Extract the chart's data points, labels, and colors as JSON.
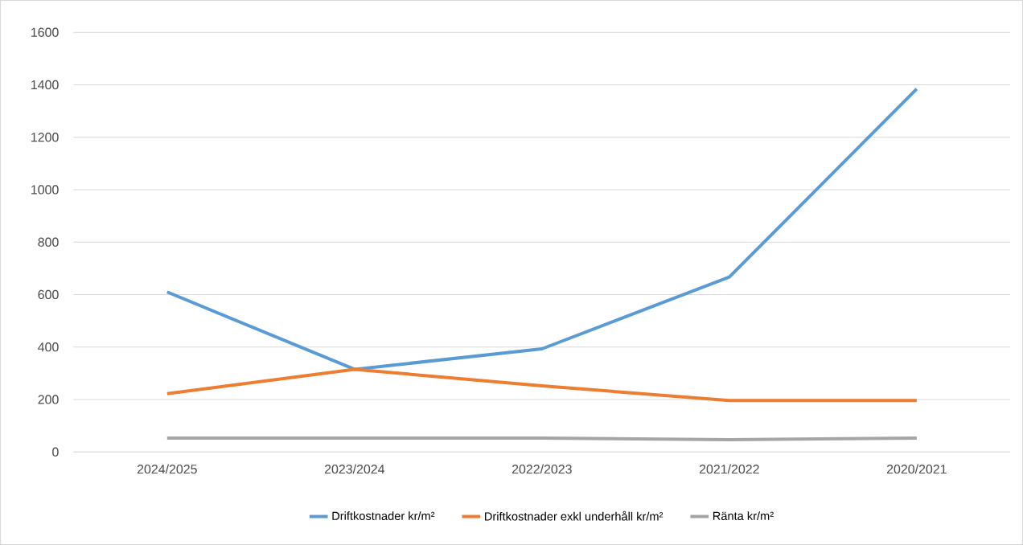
{
  "chart_data": {
    "type": "line",
    "categories": [
      "2024/2025",
      "2023/2024",
      "2022/2023",
      "2021/2022",
      "2020/2021"
    ],
    "series": [
      {
        "name": "Driftkostnader kr/m²",
        "color": "#5b9bd5",
        "values": [
          610,
          315,
          393,
          667,
          1384
        ]
      },
      {
        "name": "Driftkostnader exkl underhåll kr/m²",
        "color": "#ed7d31",
        "values": [
          222,
          315,
          252,
          196,
          196
        ]
      },
      {
        "name": "Ränta kr/m²",
        "color": "#a5a5a5",
        "values": [
          53,
          53,
          53,
          47,
          53
        ]
      }
    ],
    "ylim": [
      0,
      1600
    ],
    "yticks": [
      0,
      200,
      400,
      600,
      800,
      1000,
      1200,
      1400,
      1600
    ],
    "grid": "y",
    "legend": "bottom",
    "marker": "none",
    "line_style": "solid"
  }
}
